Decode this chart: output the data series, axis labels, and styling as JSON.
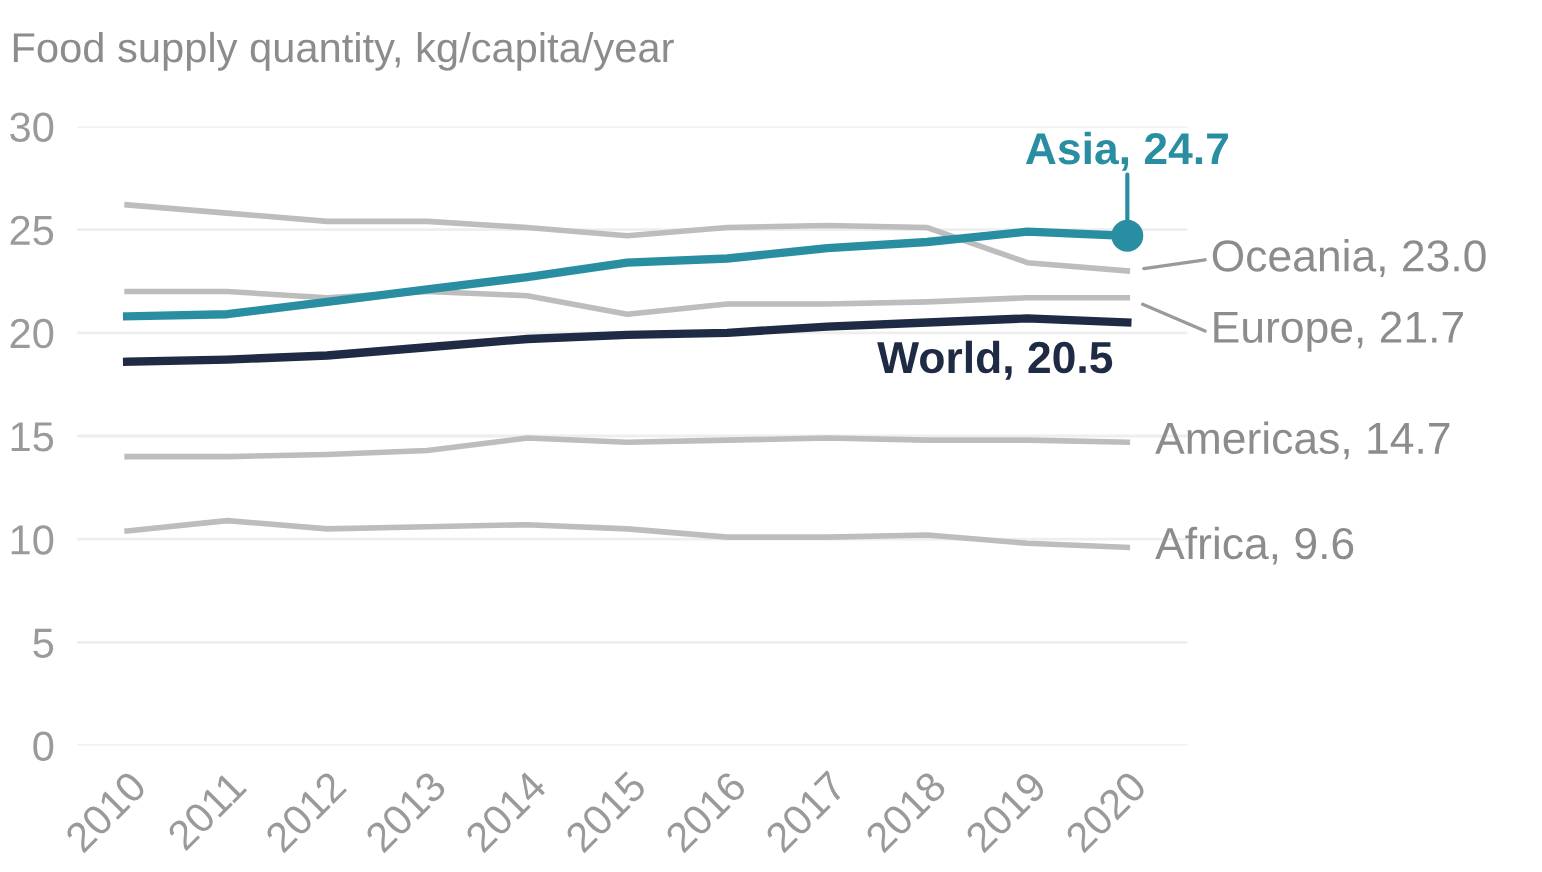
{
  "chart_data": {
    "type": "line",
    "ylabel": "Food supply quantity, kg/capita/year",
    "x": [
      2010,
      2011,
      2012,
      2013,
      2014,
      2015,
      2016,
      2017,
      2018,
      2019,
      2020
    ],
    "xlim": [
      2009.5,
      2020.6
    ],
    "xticks": [
      2010,
      2011,
      2012,
      2013,
      2014,
      2015,
      2016,
      2017,
      2018,
      2019,
      2020
    ],
    "ylim": [
      0,
      30
    ],
    "yticks": [
      0,
      5,
      10,
      15,
      20,
      25,
      30
    ],
    "grid": "y",
    "legend": false,
    "series": [
      {
        "name": "Oceania, 23.0",
        "color": "#bdbdbd",
        "values": [
          26.2,
          25.8,
          25.4,
          25.4,
          25.1,
          24.7,
          25.1,
          25.2,
          25.1,
          23.4,
          23.0
        ]
      },
      {
        "name": "Europe, 21.7",
        "color": "#bdbdbd",
        "values": [
          22.0,
          22.0,
          21.7,
          22.0,
          21.8,
          20.9,
          21.4,
          21.4,
          21.5,
          21.7,
          21.7
        ]
      },
      {
        "name": "Americas, 14.7",
        "color": "#bdbdbd",
        "values": [
          14.0,
          14.0,
          14.1,
          14.3,
          14.9,
          14.7,
          14.8,
          14.9,
          14.8,
          14.8,
          14.7
        ]
      },
      {
        "name": "Africa, 9.6",
        "color": "#bdbdbd",
        "values": [
          10.4,
          10.9,
          10.5,
          10.6,
          10.7,
          10.5,
          10.1,
          10.1,
          10.2,
          9.8,
          9.6
        ]
      },
      {
        "name": "World, 20.5",
        "color": "#1f2a44",
        "values": [
          18.6,
          18.7,
          18.9,
          19.3,
          19.7,
          19.9,
          20.0,
          20.3,
          20.5,
          20.7,
          20.5
        ]
      },
      {
        "name": "Asia, 24.7",
        "color": "#2a8ea3",
        "values": [
          20.8,
          20.9,
          21.5,
          22.1,
          22.7,
          23.4,
          23.6,
          24.1,
          24.4,
          24.9,
          24.7
        ]
      },
      {
        "type": "scatter",
        "color": "#2a8ea3",
        "x": [
          2020
        ],
        "values": [
          24.7
        ]
      }
    ]
  }
}
